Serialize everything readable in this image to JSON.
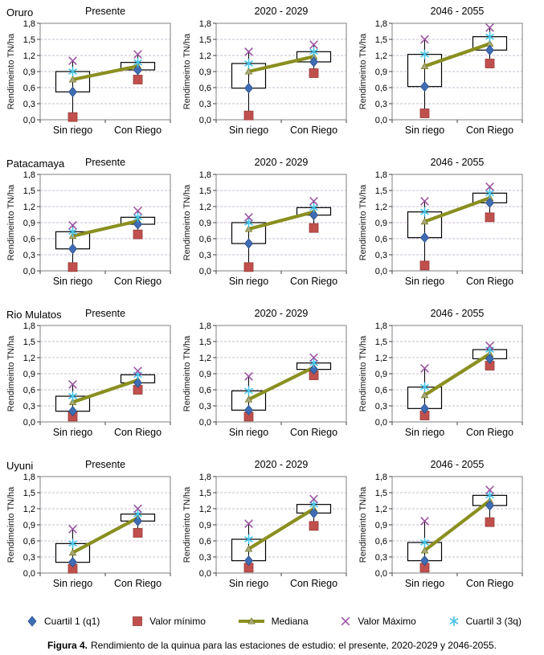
{
  "chart_data": {
    "type": "boxplot",
    "ylabel": "Rendimeinto TN/ha",
    "ylim": [
      0,
      1.8
    ],
    "ytick_step": 0.3,
    "ytick_labels": [
      "1,8",
      "1,5",
      "1,2",
      "0,9",
      "0,6",
      "0,3",
      "0,0"
    ],
    "grid": "dashed-horizontal",
    "categories": [
      "Sin riego",
      "Con Riego"
    ],
    "rows": [
      "Oruro",
      "Patacamaya",
      "Rio Mulatos",
      "Uyuni"
    ],
    "columns": [
      "Presente",
      "2020 - 2029",
      "2046 - 2055"
    ],
    "charts": [
      {
        "station": "Oruro",
        "period": "Presente",
        "stats": [
          {
            "category": "Sin riego",
            "min": 0.05,
            "q1": 0.52,
            "median": 0.75,
            "q3": 0.9,
            "max": 1.1
          },
          {
            "category": "Con Riego",
            "min": 0.75,
            "q1": 0.93,
            "median": 1.0,
            "q3": 1.07,
            "max": 1.22
          }
        ]
      },
      {
        "station": "Oruro",
        "period": "2020 - 2029",
        "stats": [
          {
            "category": "Sin riego",
            "min": 0.08,
            "q1": 0.59,
            "median": 0.9,
            "q3": 1.05,
            "max": 1.27
          },
          {
            "category": "Con Riego",
            "min": 0.87,
            "q1": 1.08,
            "median": 1.18,
            "q3": 1.27,
            "max": 1.4
          }
        ]
      },
      {
        "station": "Oruro",
        "period": "2046 - 2055",
        "stats": [
          {
            "category": "Sin riego",
            "min": 0.12,
            "q1": 0.62,
            "median": 1.0,
            "q3": 1.22,
            "max": 1.5
          },
          {
            "category": "Con Riego",
            "min": 1.05,
            "q1": 1.3,
            "median": 1.42,
            "q3": 1.55,
            "max": 1.72
          }
        ]
      },
      {
        "station": "Patacamaya",
        "period": "Presente",
        "stats": [
          {
            "category": "Sin riego",
            "min": 0.07,
            "q1": 0.41,
            "median": 0.65,
            "q3": 0.73,
            "max": 0.85
          },
          {
            "category": "Con Riego",
            "min": 0.68,
            "q1": 0.87,
            "median": 0.93,
            "q3": 1.0,
            "max": 1.12
          }
        ]
      },
      {
        "station": "Patacamaya",
        "period": "2020 - 2029",
        "stats": [
          {
            "category": "Sin riego",
            "min": 0.07,
            "q1": 0.51,
            "median": 0.78,
            "q3": 0.9,
            "max": 1.0
          },
          {
            "category": "Con Riego",
            "min": 0.8,
            "q1": 1.04,
            "median": 1.1,
            "q3": 1.18,
            "max": 1.3
          }
        ]
      },
      {
        "station": "Patacamaya",
        "period": "2046 - 2055",
        "stats": [
          {
            "category": "Sin riego",
            "min": 0.1,
            "q1": 0.62,
            "median": 0.92,
            "q3": 1.1,
            "max": 1.3
          },
          {
            "category": "Con Riego",
            "min": 1.0,
            "q1": 1.27,
            "median": 1.36,
            "q3": 1.45,
            "max": 1.57
          }
        ]
      },
      {
        "station": "Rio Mulatos",
        "period": "Presente",
        "stats": [
          {
            "category": "Sin riego",
            "min": 0.1,
            "q1": 0.2,
            "median": 0.37,
            "q3": 0.48,
            "max": 0.7
          },
          {
            "category": "Con Riego",
            "min": 0.6,
            "q1": 0.73,
            "median": 0.78,
            "q3": 0.88,
            "max": 0.95
          }
        ]
      },
      {
        "station": "Rio Mulatos",
        "period": "2020 - 2029",
        "stats": [
          {
            "category": "Sin riego",
            "min": 0.1,
            "q1": 0.22,
            "median": 0.42,
            "q3": 0.58,
            "max": 0.85
          },
          {
            "category": "Con Riego",
            "min": 0.87,
            "q1": 0.98,
            "median": 1.02,
            "q3": 1.1,
            "max": 1.2
          }
        ]
      },
      {
        "station": "Rio Mulatos",
        "period": "2046 - 2055",
        "stats": [
          {
            "category": "Sin riego",
            "min": 0.12,
            "q1": 0.25,
            "median": 0.5,
            "q3": 0.65,
            "max": 1.0
          },
          {
            "category": "Con Riego",
            "min": 1.05,
            "q1": 1.18,
            "median": 1.27,
            "q3": 1.35,
            "max": 1.42
          }
        ]
      },
      {
        "station": "Uyuni",
        "period": "Presente",
        "stats": [
          {
            "category": "Sin riego",
            "min": 0.08,
            "q1": 0.2,
            "median": 0.38,
            "q3": 0.55,
            "max": 0.82
          },
          {
            "category": "Con Riego",
            "min": 0.75,
            "q1": 0.97,
            "median": 1.03,
            "q3": 1.1,
            "max": 1.2
          }
        ]
      },
      {
        "station": "Uyuni",
        "period": "2020 - 2029",
        "stats": [
          {
            "category": "Sin riego",
            "min": 0.1,
            "q1": 0.23,
            "median": 0.45,
            "q3": 0.63,
            "max": 0.92
          },
          {
            "category": "Con Riego",
            "min": 0.88,
            "q1": 1.12,
            "median": 1.2,
            "q3": 1.28,
            "max": 1.38
          }
        ]
      },
      {
        "station": "Uyuni",
        "period": "2046 - 2055",
        "stats": [
          {
            "category": "Sin riego",
            "min": 0.1,
            "q1": 0.23,
            "median": 0.42,
            "q3": 0.57,
            "max": 0.97
          },
          {
            "category": "Con Riego",
            "min": 0.95,
            "q1": 1.26,
            "median": 1.35,
            "q3": 1.45,
            "max": 1.55
          }
        ]
      }
    ]
  },
  "legend": {
    "items": [
      {
        "label": "Cuartil 1 (q1)",
        "marker": "diamond"
      },
      {
        "label": "Valor mínimo",
        "marker": "square"
      },
      {
        "label": "Mediana",
        "marker": "line-triangle"
      },
      {
        "label": "Valor Máximo",
        "marker": "x-cross"
      },
      {
        "label": "Cuartil 3 (3q)",
        "marker": "asterisk"
      }
    ]
  },
  "caption": {
    "label": "Figura 4.",
    "text": "Rendimiento de la quinua para las estaciones de estudio: el presente, 2020-2029 y 2046-2055."
  },
  "colors": {
    "q1_diamond": "#3F6DB5",
    "q1_stroke": "#2A4D86",
    "min_square": "#C0504D",
    "min_stroke": "#963B38",
    "median_line": "#8A8F20",
    "median_marker": "#A8A87A",
    "median_marker_stroke": "#6F7418",
    "max_x": "#9C55A3",
    "q3_asterisk": "#45C2E8",
    "gridline": "#CBBCD2",
    "axis": "#808080",
    "tick": "#404040",
    "box_outline": "#000000",
    "whisker": "#000000"
  }
}
